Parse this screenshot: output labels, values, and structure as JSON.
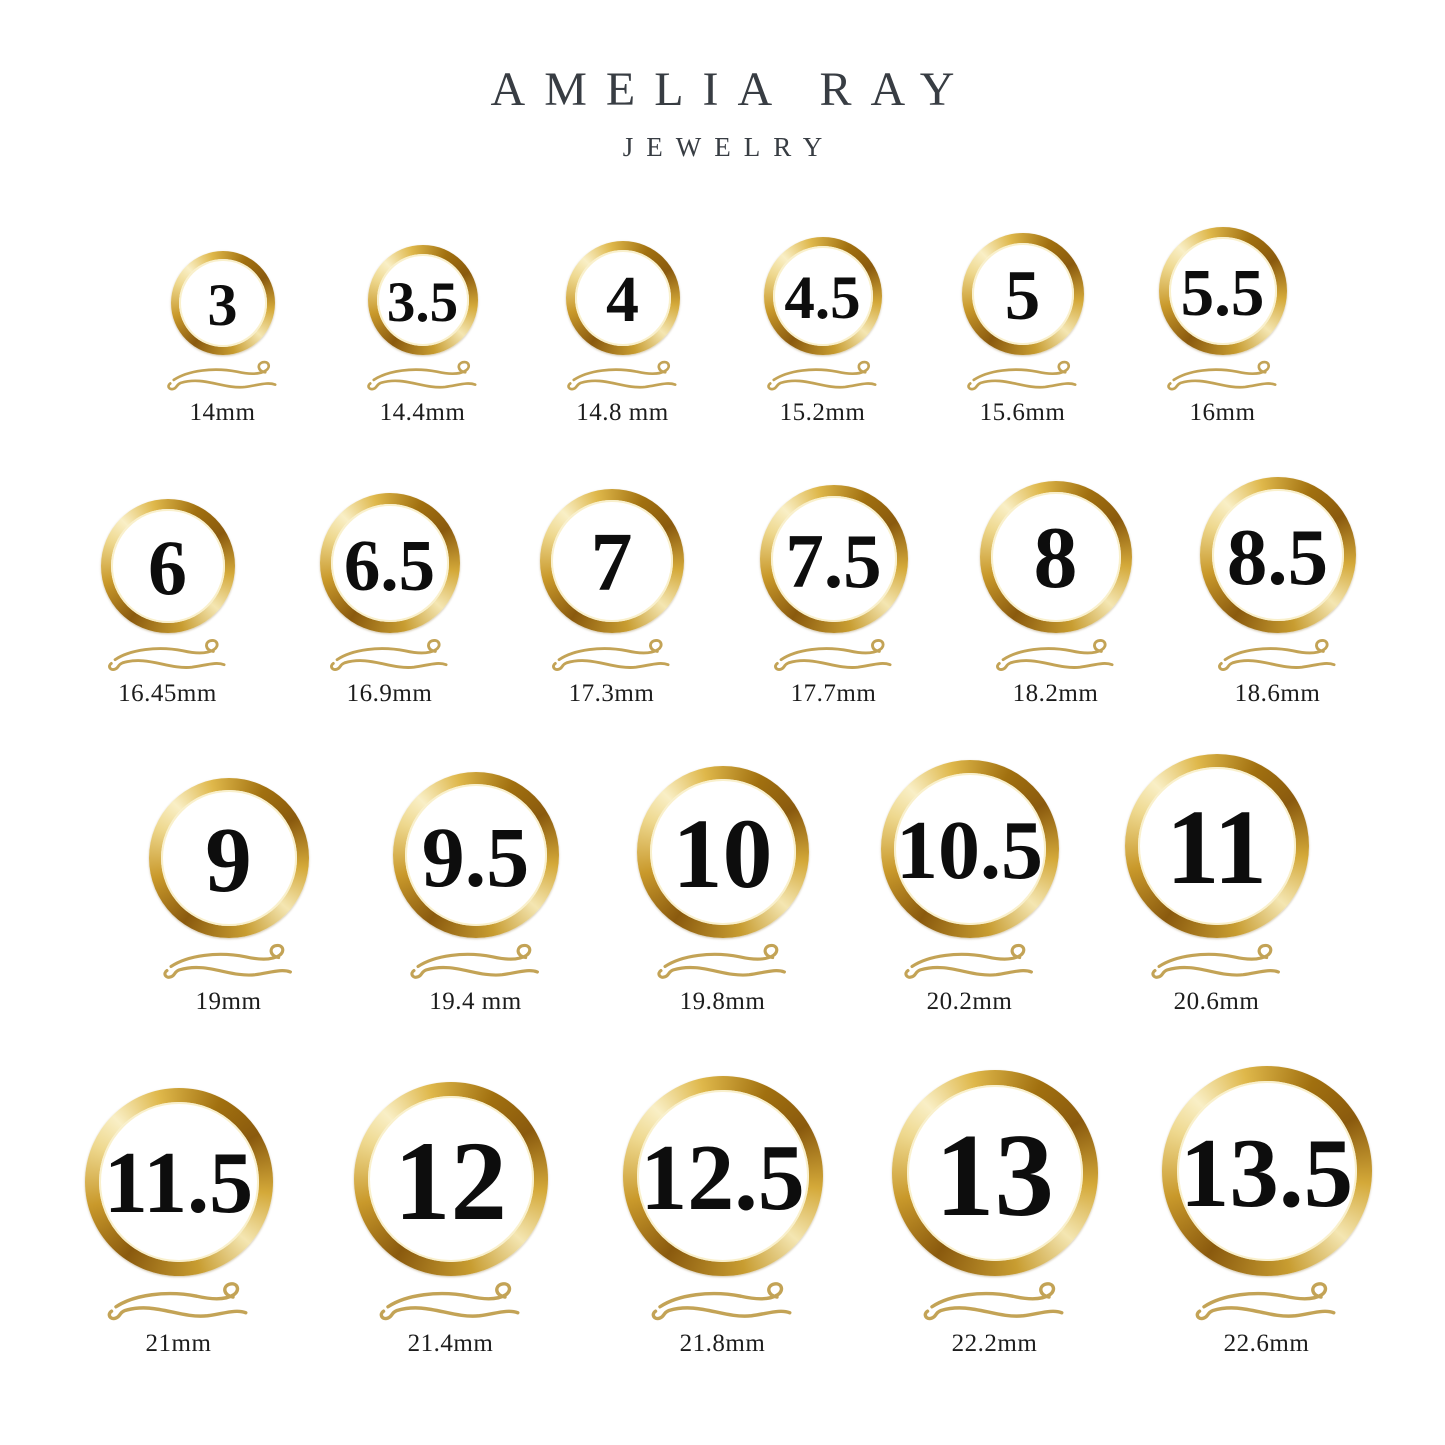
{
  "brand": {
    "title": "AMELIA RAY",
    "subtitle": "JEWELRY"
  },
  "rows": [
    {
      "rings": [
        {
          "size": "3",
          "diameter": "14mm"
        },
        {
          "size": "3.5",
          "diameter": "14.4mm"
        },
        {
          "size": "4",
          "diameter": "14.8 mm"
        },
        {
          "size": "4.5",
          "diameter": "15.2mm"
        },
        {
          "size": "5",
          "diameter": "15.6mm"
        },
        {
          "size": "5.5",
          "diameter": "16mm"
        }
      ]
    },
    {
      "rings": [
        {
          "size": "6",
          "diameter": "16.45mm"
        },
        {
          "size": "6.5",
          "diameter": "16.9mm"
        },
        {
          "size": "7",
          "diameter": "17.3mm"
        },
        {
          "size": "7.5",
          "diameter": "17.7mm"
        },
        {
          "size": "8",
          "diameter": "18.2mm"
        },
        {
          "size": "8.5",
          "diameter": "18.6mm"
        }
      ]
    },
    {
      "rings": [
        {
          "size": "9",
          "diameter": "19mm"
        },
        {
          "size": "9.5",
          "diameter": "19.4 mm"
        },
        {
          "size": "10",
          "diameter": "19.8mm"
        },
        {
          "size": "10.5",
          "diameter": "20.2mm"
        },
        {
          "size": "11",
          "diameter": "20.6mm"
        }
      ]
    },
    {
      "rings": [
        {
          "size": "11.5",
          "diameter": "21mm"
        },
        {
          "size": "12",
          "diameter": "21.4mm"
        },
        {
          "size": "12.5",
          "diameter": "21.8mm"
        },
        {
          "size": "13",
          "diameter": "22.2mm"
        },
        {
          "size": "13.5",
          "diameter": "22.6mm"
        }
      ]
    }
  ],
  "colors": {
    "gold_dark": "#8a5a0e",
    "gold_mid": "#c9992b",
    "gold_highlight": "#f9efc6",
    "flourish_gold": "#c3a356",
    "number_text": "#0d0d0d",
    "label_text": "#1c1c1c",
    "brand_text": "#383d43",
    "background": "#ffffff"
  }
}
